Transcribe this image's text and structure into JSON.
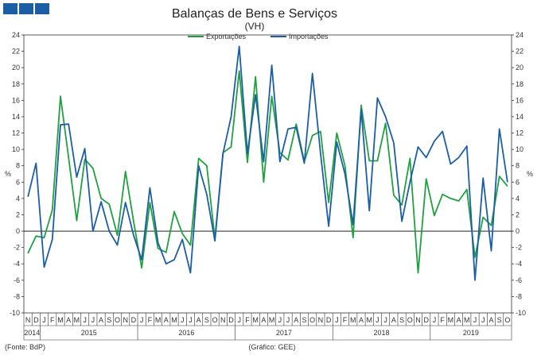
{
  "colors": {
    "exports": "#20a040",
    "imports": "#1b5ea6",
    "zero": "#000000",
    "header_blocks": "#1b5ea6"
  },
  "header_icons": [
    "square-block",
    "square-block",
    "square-block"
  ],
  "chart_data": {
    "type": "line",
    "title": "Balanças de Bens e Serviços",
    "subtitle": "(VH)",
    "ylabel": "%",
    "ylim": [
      -10,
      24
    ],
    "yticks": [
      -10,
      -8,
      -6,
      -4,
      -2,
      0,
      2,
      4,
      6,
      8,
      10,
      12,
      14,
      16,
      18,
      20,
      22,
      24
    ],
    "grid": false,
    "legend_position": "top-center",
    "source": "(Fonte: BdP)",
    "credit": "(Gráfico: GEE)",
    "month_labels": [
      "N",
      "D",
      "J",
      "F",
      "M",
      "A",
      "M",
      "J",
      "J",
      "A",
      "S",
      "O",
      "N",
      "D",
      "J",
      "F",
      "M",
      "A",
      "M",
      "J",
      "J",
      "A",
      "S",
      "O",
      "N",
      "D",
      "J",
      "F",
      "M",
      "A",
      "M",
      "J",
      "J",
      "A",
      "S",
      "O",
      "N",
      "D",
      "J",
      "F",
      "M",
      "A",
      "M",
      "J",
      "J",
      "A",
      "S",
      "O",
      "N",
      "D",
      "J",
      "F",
      "M",
      "A",
      "M",
      "J",
      "J",
      "A",
      "S",
      "O"
    ],
    "years": [
      {
        "label": "2014",
        "start": 0,
        "count": 2
      },
      {
        "label": "2015",
        "start": 2,
        "count": 12
      },
      {
        "label": "2016",
        "start": 14,
        "count": 12
      },
      {
        "label": "2017",
        "start": 26,
        "count": 12
      },
      {
        "label": "2018",
        "start": 38,
        "count": 12
      },
      {
        "label": "2019",
        "start": 50,
        "count": 10
      }
    ],
    "series": [
      {
        "name": "Exportações",
        "values": [
          -2.7,
          -0.6,
          -0.8,
          2.6,
          16.5,
          9,
          1.3,
          8.8,
          7.7,
          4,
          3.3,
          -0.5,
          7.3,
          1.2,
          -4.5,
          3.5,
          -2.1,
          -2.6,
          2.4,
          -0.3,
          -1.7,
          8.9,
          8,
          -0.9,
          9.6,
          10.3,
          19.6,
          8.4,
          18.9,
          6,
          16.5,
          9.6,
          8.7,
          13.1,
          8.5,
          11.7,
          12.2,
          3.5,
          12,
          8,
          -0.8,
          15.4,
          8.6,
          8.6,
          13.2,
          4.4,
          3.2,
          8.9,
          -5.1,
          6.4,
          1.9,
          4.5,
          4,
          3.7,
          5.1,
          -3.2,
          1.7,
          0.7,
          6.7,
          5.5
        ]
      },
      {
        "name": "Importações",
        "values": [
          4.2,
          8.3,
          -4.4,
          -1,
          13,
          13.1,
          6.6,
          10.1,
          0,
          3.6,
          0,
          -1.7,
          3.5,
          -0.5,
          -3.5,
          5.3,
          -1.4,
          -4,
          -3.5,
          -1,
          -5.1,
          8,
          4.5,
          -1.2,
          9.5,
          14,
          22.6,
          9.5,
          16.7,
          8.5,
          20.3,
          8.5,
          12.5,
          12.7,
          8.3,
          19.3,
          9.5,
          0.6,
          10.9,
          7,
          0.8,
          14.9,
          2.5,
          16.3,
          14,
          10.8,
          1.2,
          6,
          10.3,
          9,
          11,
          12.2,
          8.2,
          9,
          10.4,
          -6,
          6.5,
          -2.4,
          12.5,
          6
        ]
      }
    ]
  }
}
